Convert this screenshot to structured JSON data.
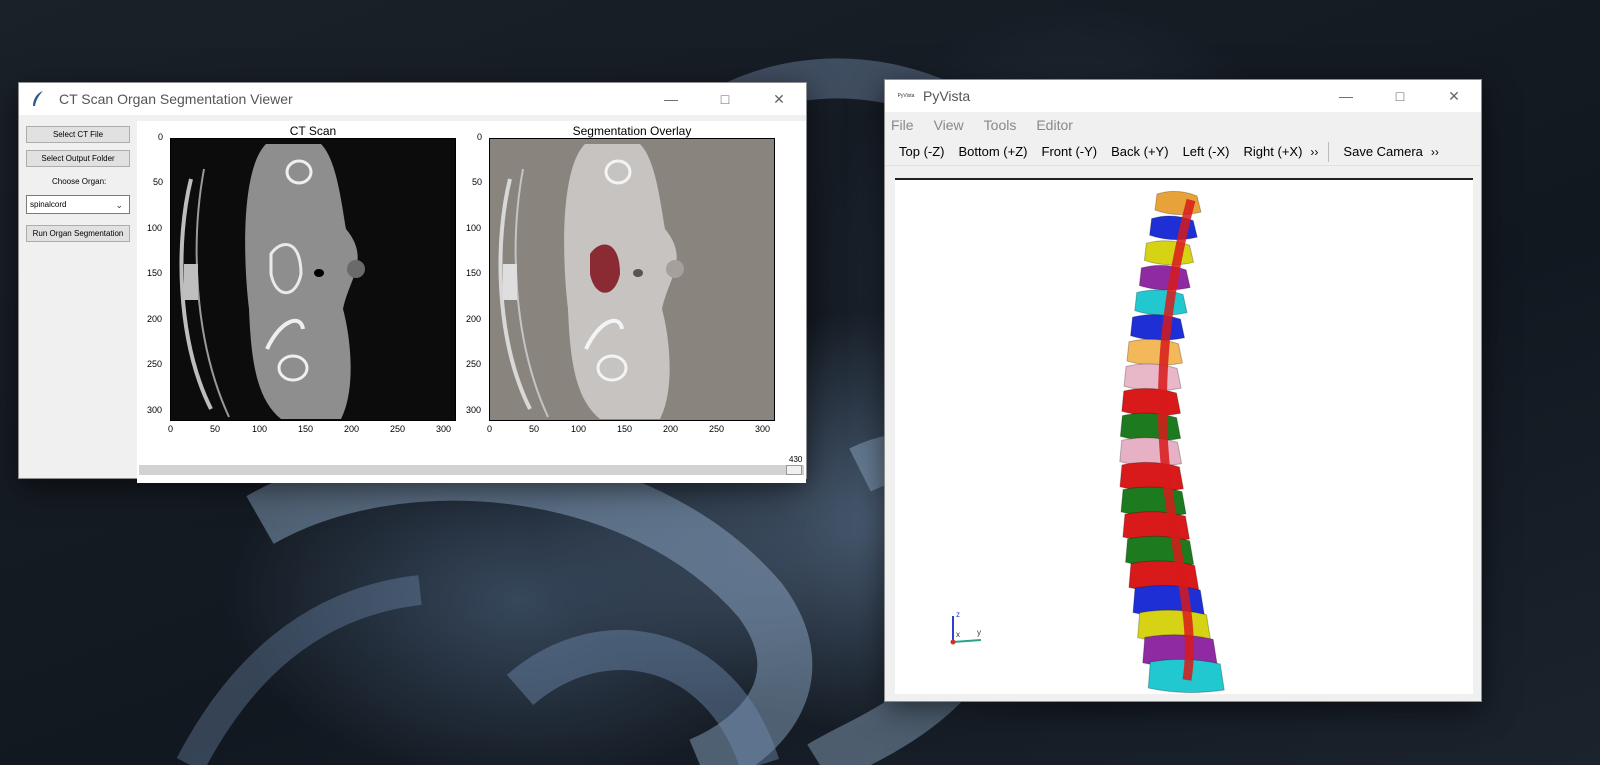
{
  "ct_window": {
    "title": "CT Scan Organ Segmentation Viewer",
    "buttons": {
      "select_ct": "Select CT File",
      "select_output": "Select Output Folder",
      "run": "Run Organ Segmentation"
    },
    "choose_organ_label": "Choose Organ:",
    "organ_selected": "spinalcord",
    "plots": [
      {
        "title": "CT Scan",
        "y_ticks": [
          "0",
          "50",
          "100",
          "150",
          "200",
          "250",
          "300"
        ],
        "x_ticks": [
          "0",
          "50",
          "100",
          "150",
          "200",
          "250",
          "300"
        ]
      },
      {
        "title": "Segmentation Overlay",
        "y_ticks": [
          "0",
          "50",
          "100",
          "150",
          "200",
          "250",
          "300"
        ],
        "x_ticks": [
          "0",
          "50",
          "100",
          "150",
          "200",
          "250",
          "300"
        ]
      }
    ],
    "slider_value": "430"
  },
  "pyvista_window": {
    "title": "PyVista",
    "icon_text": "PyVista",
    "menu": [
      "File",
      "View",
      "Tools",
      "Editor"
    ],
    "toolbar": [
      "Top (-Z)",
      "Bottom (+Z)",
      "Front (-Y)",
      "Back (+Y)",
      "Left (-X)",
      "Right (+X)"
    ],
    "more": "››",
    "save_camera": "Save Camera",
    "axes": {
      "z": "z",
      "x": "x",
      "y": "y"
    }
  },
  "colors": {
    "vertebra_palette": [
      "#e8a23a",
      "#1e2fd6",
      "#d6d214",
      "#8f2aa3",
      "#22c8d0",
      "#f2b85a",
      "#e8b7c8",
      "#d81a1a",
      "#1e7a1e",
      "#e6b1c4"
    ]
  }
}
